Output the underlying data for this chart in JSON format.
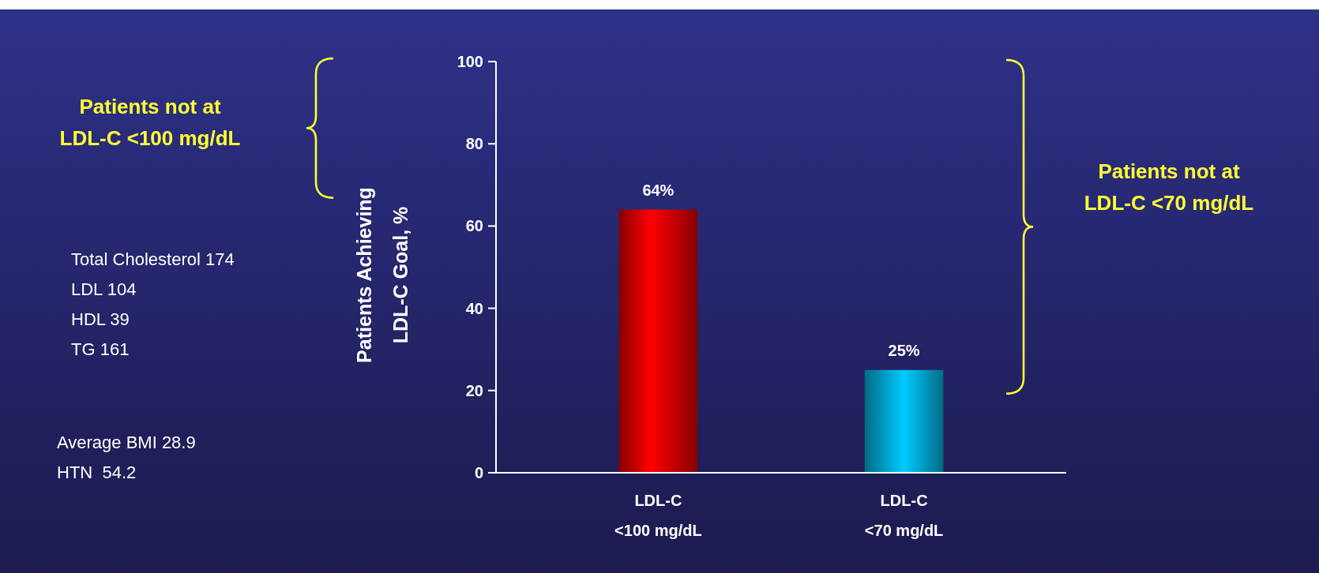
{
  "chart_data": {
    "type": "bar",
    "categories": [
      "LDL-C\n<100 mg/dL",
      "LDL-C\n<70 mg/dL"
    ],
    "values": [
      64,
      25
    ],
    "colors": [
      "#ff0000",
      "#00ccff"
    ],
    "value_labels": [
      "64%",
      "25%"
    ],
    "ylabel": "Patients Achieving\nLDL-C Goal, %",
    "ylim": [
      0,
      100
    ],
    "yticks": [
      0,
      20,
      40,
      60,
      80,
      100
    ],
    "grid": false,
    "annotations": [
      "Patients not at\nLDL-C <100 mg/dL",
      "Patients not at\nLDL-C <70 mg/dL",
      "Total Cholesterol 174\nLDL 104\nHDL 39\nTG 161",
      "Average BMI 28.9\nHTN  54.2"
    ]
  }
}
